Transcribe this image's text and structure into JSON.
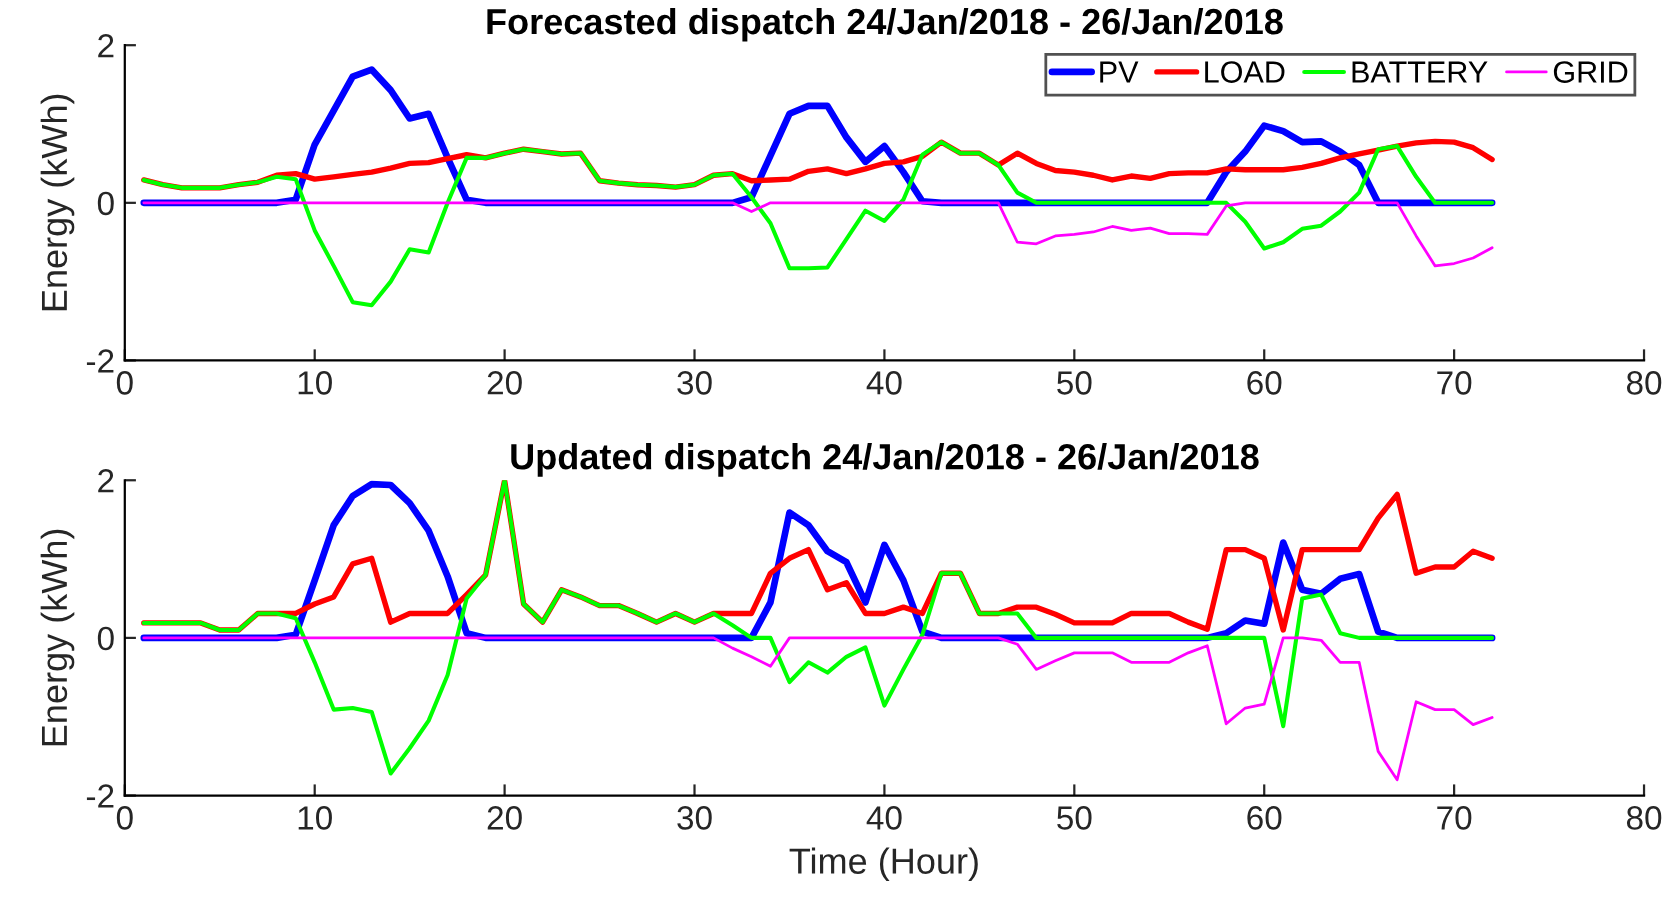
{
  "chart_data": [
    {
      "type": "line",
      "title": "Forecasted dispatch 24/Jan/2018 - 26/Jan/2018",
      "ylabel": "Energy (kWh)",
      "x": [
        1,
        2,
        3,
        4,
        5,
        6,
        7,
        8,
        9,
        10,
        11,
        12,
        13,
        14,
        15,
        16,
        17,
        18,
        19,
        20,
        21,
        22,
        23,
        24,
        25,
        26,
        27,
        28,
        29,
        30,
        31,
        32,
        33,
        34,
        35,
        36,
        37,
        38,
        39,
        40,
        41,
        42,
        43,
        44,
        45,
        46,
        47,
        48,
        49,
        50,
        51,
        52,
        53,
        54,
        55,
        56,
        57,
        58,
        59,
        60,
        61,
        62,
        63,
        64,
        65,
        66,
        67,
        68,
        69,
        70,
        71,
        72
      ],
      "xlim": [
        0,
        80
      ],
      "xticks": [
        0,
        10,
        20,
        30,
        40,
        50,
        60,
        70,
        80
      ],
      "ylim": [
        -2,
        2
      ],
      "yticks": [
        -2,
        0,
        2
      ],
      "grid": false,
      "legend": "top right",
      "marker": "none",
      "line_style": "solid",
      "series": [
        {
          "name": "PV",
          "color": "#0000ff",
          "values": [
            0,
            0,
            0,
            0,
            0,
            0,
            0,
            0,
            0.04,
            0.74,
            1.17,
            1.6,
            1.69,
            1.43,
            1.07,
            1.13,
            0.57,
            0.04,
            0,
            0,
            0,
            0,
            0,
            0,
            0,
            0,
            0,
            0,
            0,
            0,
            0,
            0,
            0.07,
            0.6,
            1.13,
            1.23,
            1.23,
            0.83,
            0.52,
            0.72,
            0.39,
            0.02,
            0,
            0,
            0,
            0,
            0,
            0,
            0,
            0,
            0,
            0,
            0,
            0,
            0,
            0,
            0,
            0.39,
            0.65,
            0.98,
            0.91,
            0.77,
            0.78,
            0.65,
            0.48,
            0,
            0,
            0,
            0,
            0,
            0,
            0
          ]
        },
        {
          "name": "LOAD",
          "color": "#ff0000",
          "values": [
            0.29,
            0.23,
            0.19,
            0.19,
            0.19,
            0.23,
            0.26,
            0.35,
            0.37,
            0.3,
            0.33,
            0.36,
            0.39,
            0.44,
            0.5,
            0.51,
            0.56,
            0.61,
            0.57,
            0.63,
            0.68,
            0.65,
            0.62,
            0.63,
            0.28,
            0.25,
            0.23,
            0.22,
            0.2,
            0.23,
            0.35,
            0.37,
            0.28,
            0.29,
            0.3,
            0.4,
            0.43,
            0.37,
            0.43,
            0.5,
            0.52,
            0.59,
            0.77,
            0.63,
            0.63,
            0.48,
            0.63,
            0.5,
            0.41,
            0.39,
            0.35,
            0.29,
            0.34,
            0.31,
            0.37,
            0.38,
            0.38,
            0.43,
            0.42,
            0.42,
            0.42,
            0.45,
            0.5,
            0.57,
            0.62,
            0.67,
            0.72,
            0.76,
            0.78,
            0.77,
            0.7,
            0.55
          ]
        },
        {
          "name": "BATTERY",
          "color": "#00ff00",
          "values": [
            0.29,
            0.23,
            0.19,
            0.19,
            0.19,
            0.23,
            0.26,
            0.33,
            0.3,
            -0.35,
            -0.8,
            -1.26,
            -1.3,
            -1.0,
            -0.59,
            -0.63,
            0,
            0.57,
            0.57,
            0.63,
            0.68,
            0.65,
            0.62,
            0.63,
            0.28,
            0.25,
            0.23,
            0.22,
            0.2,
            0.23,
            0.35,
            0.37,
            0.07,
            -0.26,
            -0.83,
            -0.83,
            -0.82,
            -0.46,
            -0.1,
            -0.23,
            0.04,
            0.61,
            0.77,
            0.63,
            0.63,
            0.48,
            0.13,
            0,
            0,
            0,
            0,
            0,
            0,
            0,
            0,
            0,
            0,
            0,
            -0.24,
            -0.58,
            -0.5,
            -0.33,
            -0.29,
            -0.11,
            0.13,
            0.68,
            0.72,
            0.33,
            0,
            0,
            0,
            0
          ]
        },
        {
          "name": "GRID",
          "color": "#ff00ff",
          "values": [
            0,
            0,
            0,
            0,
            0,
            0,
            0,
            0,
            0,
            0,
            0,
            0,
            0,
            0,
            0,
            0,
            0,
            0,
            0,
            0,
            0,
            0,
            0,
            0,
            0,
            0,
            0,
            0,
            0,
            0,
            0,
            0,
            -0.11,
            0,
            0,
            0,
            0,
            0,
            0,
            0,
            0,
            0,
            0,
            0,
            0,
            0,
            -0.5,
            -0.52,
            -0.42,
            -0.4,
            -0.37,
            -0.3,
            -0.35,
            -0.32,
            -0.39,
            -0.39,
            -0.4,
            -0.04,
            0,
            0,
            0,
            0,
            0,
            0,
            0,
            0,
            0,
            -0.42,
            -0.8,
            -0.77,
            -0.7,
            -0.57
          ]
        }
      ]
    },
    {
      "type": "line",
      "title": "Updated dispatch 24/Jan/2018 - 26/Jan/2018",
      "xlabel": "Time (Hour)",
      "ylabel": "Energy (kWh)",
      "x": [
        1,
        2,
        3,
        4,
        5,
        6,
        7,
        8,
        9,
        10,
        11,
        12,
        13,
        14,
        15,
        16,
        17,
        18,
        19,
        20,
        21,
        22,
        23,
        24,
        25,
        26,
        27,
        28,
        29,
        30,
        31,
        32,
        33,
        34,
        35,
        36,
        37,
        38,
        39,
        40,
        41,
        42,
        43,
        44,
        45,
        46,
        47,
        48,
        49,
        50,
        51,
        52,
        53,
        54,
        55,
        56,
        57,
        58,
        59,
        60,
        61,
        62,
        63,
        64,
        65,
        66,
        67,
        68,
        69,
        70,
        71,
        72
      ],
      "xlim": [
        0,
        80
      ],
      "xticks": [
        0,
        10,
        20,
        30,
        40,
        50,
        60,
        70,
        80
      ],
      "ylim": [
        -2,
        2
      ],
      "yticks": [
        -2,
        0,
        2
      ],
      "grid": false,
      "legend": false,
      "marker": "none",
      "line_style": "solid",
      "series": [
        {
          "color": "#0000ff",
          "values": [
            0,
            0,
            0,
            0,
            0,
            0,
            0,
            0,
            0.04,
            0.73,
            1.43,
            1.8,
            1.95,
            1.94,
            1.71,
            1.36,
            0.78,
            0.06,
            0,
            0,
            0,
            0,
            0,
            0,
            0,
            0,
            0,
            0,
            0,
            0,
            0,
            0,
            0,
            0.45,
            1.59,
            1.43,
            1.1,
            0.96,
            0.45,
            1.18,
            0.73,
            0.08,
            0,
            0,
            0,
            0,
            0,
            0,
            0,
            0,
            0,
            0,
            0,
            0,
            0,
            0,
            0,
            0.06,
            0.22,
            0.18,
            1.21,
            0.61,
            0.56,
            0.75,
            0.81,
            0.08,
            0,
            0,
            0,
            0,
            0,
            0
          ]
        },
        {
          "color": "#ff0000",
          "values": [
            0.19,
            0.19,
            0.19,
            0.19,
            0.1,
            0.1,
            0.31,
            0.31,
            0.31,
            0.43,
            0.52,
            0.94,
            1.01,
            0.2,
            0.31,
            0.31,
            0.31,
            0.55,
            0.8,
            2.0,
            0.43,
            0.2,
            0.61,
            0.52,
            0.41,
            0.41,
            0.31,
            0.2,
            0.31,
            0.2,
            0.31,
            0.31,
            0.31,
            0.82,
            1.01,
            1.12,
            0.61,
            0.7,
            0.31,
            0.31,
            0.39,
            0.31,
            0.82,
            0.82,
            0.31,
            0.31,
            0.39,
            0.39,
            0.3,
            0.19,
            0.19,
            0.19,
            0.31,
            0.31,
            0.31,
            0.2,
            0.11,
            1.12,
            1.12,
            1.01,
            0.1,
            1.12,
            1.12,
            1.12,
            1.12,
            1.52,
            1.82,
            0.82,
            0.9,
            0.9,
            1.1,
            1.01
          ]
        },
        {
          "color": "#00ff00",
          "values": [
            0.19,
            0.19,
            0.19,
            0.19,
            0.1,
            0.1,
            0.31,
            0.31,
            0.25,
            -0.31,
            -0.91,
            -0.89,
            -0.94,
            -1.72,
            -1.4,
            -1.05,
            -0.47,
            0.5,
            0.8,
            2.0,
            0.43,
            0.2,
            0.61,
            0.52,
            0.41,
            0.41,
            0.31,
            0.2,
            0.31,
            0.2,
            0.31,
            0.16,
            0,
            0,
            -0.56,
            -0.31,
            -0.44,
            -0.24,
            -0.12,
            -0.86,
            -0.4,
            0.04,
            0.82,
            0.82,
            0.31,
            0.31,
            0.31,
            0,
            0,
            0,
            0,
            0,
            0,
            0,
            0,
            0,
            0,
            0,
            0,
            0,
            -1.12,
            0.5,
            0.55,
            0.06,
            0,
            0,
            0,
            0,
            0,
            0,
            0,
            0
          ]
        },
        {
          "color": "#ff00ff",
          "values": [
            0,
            0,
            0,
            0,
            0,
            0,
            0,
            0,
            0,
            0,
            0,
            0,
            0,
            0,
            0,
            0,
            0,
            0,
            0,
            0,
            0,
            0,
            0,
            0,
            0,
            0,
            0,
            0,
            0,
            0,
            0,
            -0.13,
            -0.24,
            -0.36,
            0,
            0,
            0,
            0,
            0,
            0,
            0,
            0,
            0,
            0,
            0,
            0,
            -0.08,
            -0.4,
            -0.29,
            -0.19,
            -0.19,
            -0.19,
            -0.31,
            -0.31,
            -0.31,
            -0.19,
            -0.1,
            -1.09,
            -0.89,
            -0.84,
            0,
            0,
            -0.03,
            -0.31,
            -0.31,
            -1.44,
            -1.8,
            -0.81,
            -0.91,
            -0.91,
            -1.1,
            -1.01
          ]
        }
      ]
    }
  ]
}
